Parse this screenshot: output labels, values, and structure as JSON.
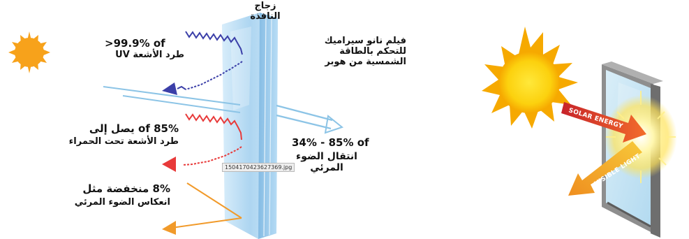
{
  "left_diagram": {
    "window_glass_label": "زجاج\nالنافذة",
    "film_label": "فيلم نانو سيراميك\nللتحكم بالطاقة\nالشمسية من هوبر",
    "uv": {
      "value": ">99.9% of",
      "caption": "طرد الأشعة UV"
    },
    "infrared": {
      "value": "85% of يصل إلى",
      "caption": "طرد الأشعة تحت الحمراء"
    },
    "visible_transmission": {
      "value": "34% - 85% of",
      "caption": "انتقال الضوء\nالمرئي"
    },
    "reflection": {
      "value": "8% منخفضة مثل",
      "caption": "انعكاس الضوء المرئي"
    },
    "image_filename": "1504170423627369.jpg"
  },
  "right_diagram": {
    "solar_energy_label": "SOLAR ENERGY",
    "visible_light_label": "VISIBLE LIGHT"
  },
  "colors": {
    "sun": "#f7a21b",
    "uv_wave": "#3b3fa8",
    "ir_wave": "#e83a3a",
    "visible_light": "#8cc4e6",
    "reflection": "#f19a2a",
    "glass": "#a9d3f0",
    "solar_arrow": "#e3512a",
    "visible_arrow": "#f0b01d"
  }
}
